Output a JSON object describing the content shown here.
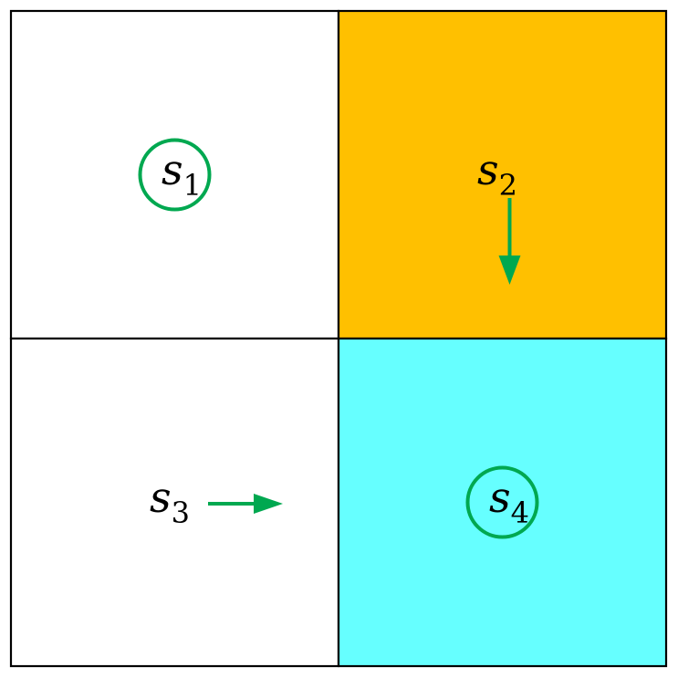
{
  "grid": {
    "rows": 2,
    "cols": 2,
    "border_color": "#000000",
    "cells": [
      {
        "id": "s1",
        "row": 0,
        "col": 0,
        "base": "s",
        "subscript": "1",
        "fill": "#ffffff",
        "marker": "circle",
        "arrow": null
      },
      {
        "id": "s2",
        "row": 0,
        "col": 1,
        "base": "s",
        "subscript": "2",
        "fill": "#ffc000",
        "marker": null,
        "arrow": "down"
      },
      {
        "id": "s3",
        "row": 1,
        "col": 0,
        "base": "s",
        "subscript": "3",
        "fill": "#ffffff",
        "marker": null,
        "arrow": "right"
      },
      {
        "id": "s4",
        "row": 1,
        "col": 1,
        "base": "s",
        "subscript": "4",
        "fill": "#66ffff",
        "marker": "circle",
        "arrow": null
      }
    ]
  },
  "colors": {
    "marker": "#00a850",
    "arrow": "#00a850"
  }
}
